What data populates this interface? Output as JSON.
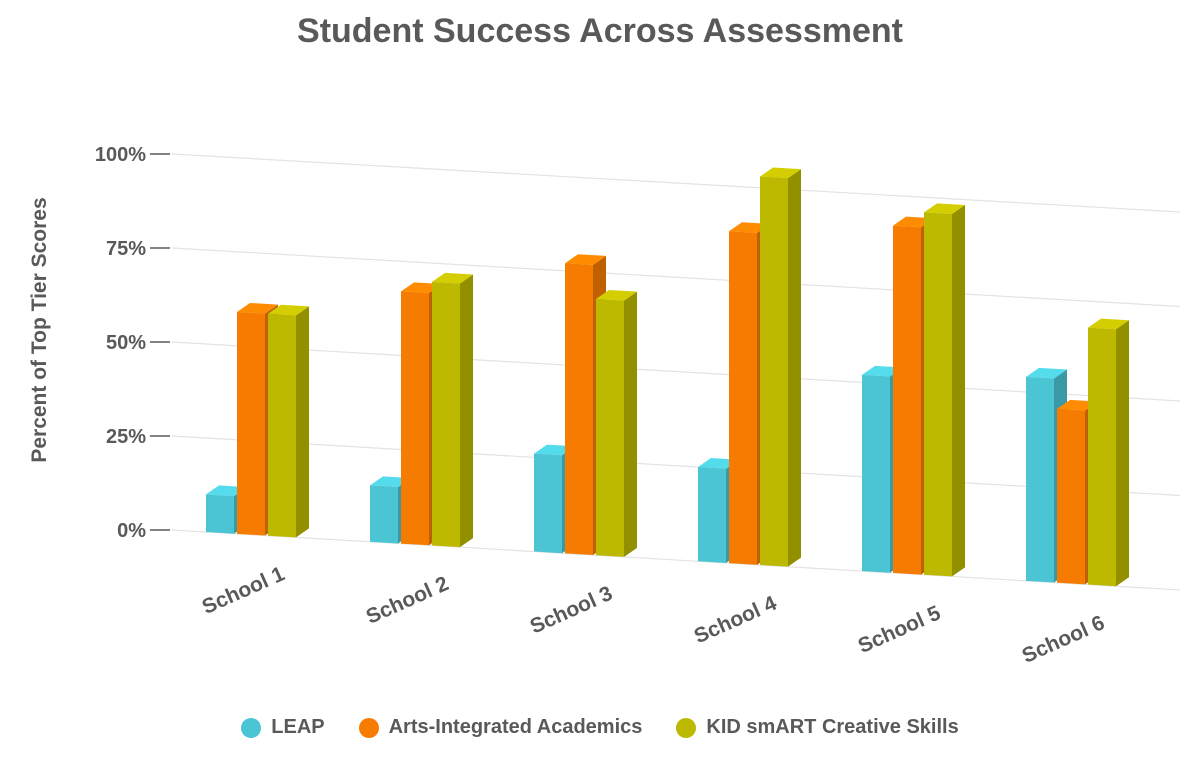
{
  "chart_data": {
    "type": "bar",
    "title": "Student Success Across Assessment",
    "ylabel": "Percent of Top Tier Scores",
    "xlabel": "",
    "ylim": [
      0,
      100
    ],
    "yticks": [
      "0%",
      "25%",
      "50%",
      "75%",
      "100%"
    ],
    "ytick_values": [
      0,
      25,
      50,
      75,
      100
    ],
    "grid": true,
    "legend_position": "bottom",
    "categories": [
      "School 1",
      "School 2",
      "School 3",
      "School 4",
      "School 5",
      "School 6"
    ],
    "series": [
      {
        "name": "LEAP",
        "color": "#4BC4D3",
        "values": [
          10,
          15,
          26,
          25,
          52,
          54
        ]
      },
      {
        "name": "Arts-Integrated Academics",
        "color": "#F57C00",
        "values": [
          59,
          67,
          77,
          88,
          92,
          46
        ]
      },
      {
        "name": "KID smART Creative Skills",
        "color": "#BDB800",
        "values": [
          59,
          70,
          68,
          103,
          96,
          68
        ]
      }
    ]
  }
}
